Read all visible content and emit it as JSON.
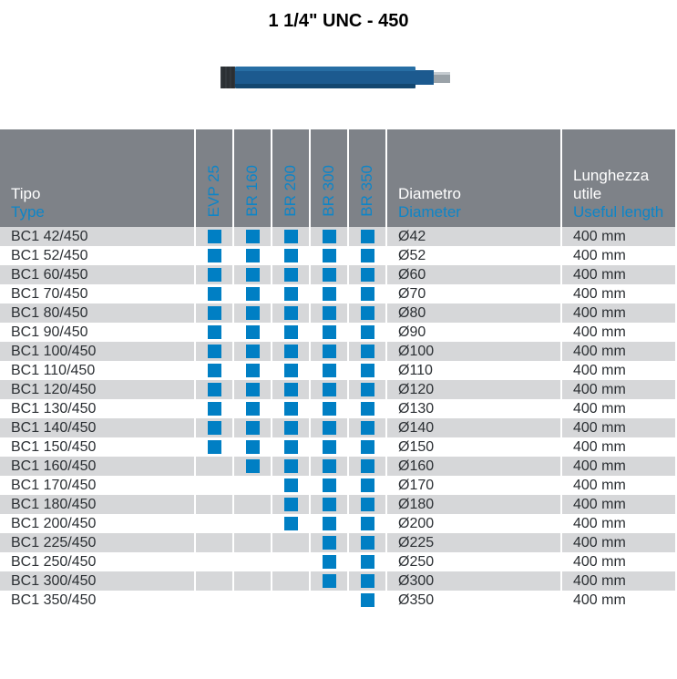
{
  "title": "1 1/4\" UNC - 450",
  "image": {
    "body_color": "#1c5a8f",
    "tip_color": "#33383d",
    "shank_color": "#9aa2a8"
  },
  "header": {
    "type_it": "Tipo",
    "type_en": "Type",
    "cols": [
      "EVP 25",
      "BR 160",
      "BR 200",
      "BR 300",
      "BR 350"
    ],
    "diam_it": "Diametro",
    "diam_en": "Diameter",
    "len_it": "Lunghezza utile",
    "len_en": "Useful length"
  },
  "marks": {
    "on_color": "#007fc4"
  },
  "rows": [
    {
      "type": "BC1 42/450",
      "m": [
        1,
        1,
        1,
        1,
        1
      ],
      "diam": "Ø42",
      "len": "400 mm"
    },
    {
      "type": "BC1 52/450",
      "m": [
        1,
        1,
        1,
        1,
        1
      ],
      "diam": "Ø52",
      "len": "400 mm"
    },
    {
      "type": "BC1 60/450",
      "m": [
        1,
        1,
        1,
        1,
        1
      ],
      "diam": "Ø60",
      "len": "400 mm"
    },
    {
      "type": "BC1 70/450",
      "m": [
        1,
        1,
        1,
        1,
        1
      ],
      "diam": "Ø70",
      "len": "400 mm"
    },
    {
      "type": "BC1 80/450",
      "m": [
        1,
        1,
        1,
        1,
        1
      ],
      "diam": "Ø80",
      "len": "400 mm"
    },
    {
      "type": "BC1 90/450",
      "m": [
        1,
        1,
        1,
        1,
        1
      ],
      "diam": "Ø90",
      "len": "400 mm"
    },
    {
      "type": "BC1 100/450",
      "m": [
        1,
        1,
        1,
        1,
        1
      ],
      "diam": "Ø100",
      "len": "400 mm"
    },
    {
      "type": "BC1 110/450",
      "m": [
        1,
        1,
        1,
        1,
        1
      ],
      "diam": "Ø110",
      "len": "400 mm"
    },
    {
      "type": "BC1 120/450",
      "m": [
        1,
        1,
        1,
        1,
        1
      ],
      "diam": "Ø120",
      "len": "400 mm"
    },
    {
      "type": "BC1 130/450",
      "m": [
        1,
        1,
        1,
        1,
        1
      ],
      "diam": "Ø130",
      "len": "400 mm"
    },
    {
      "type": "BC1 140/450",
      "m": [
        1,
        1,
        1,
        1,
        1
      ],
      "diam": "Ø140",
      "len": "400 mm"
    },
    {
      "type": "BC1 150/450",
      "m": [
        1,
        1,
        1,
        1,
        1
      ],
      "diam": "Ø150",
      "len": "400 mm"
    },
    {
      "type": "BC1 160/450",
      "m": [
        0,
        1,
        1,
        1,
        1
      ],
      "diam": "Ø160",
      "len": "400 mm"
    },
    {
      "type": "BC1 170/450",
      "m": [
        0,
        0,
        1,
        1,
        1
      ],
      "diam": "Ø170",
      "len": "400 mm"
    },
    {
      "type": "BC1 180/450",
      "m": [
        0,
        0,
        1,
        1,
        1
      ],
      "diam": "Ø180",
      "len": "400 mm"
    },
    {
      "type": "BC1 200/450",
      "m": [
        0,
        0,
        1,
        1,
        1
      ],
      "diam": "Ø200",
      "len": "400 mm"
    },
    {
      "type": "BC1 225/450",
      "m": [
        0,
        0,
        0,
        1,
        1
      ],
      "diam": "Ø225",
      "len": "400 mm"
    },
    {
      "type": "BC1 250/450",
      "m": [
        0,
        0,
        0,
        1,
        1
      ],
      "diam": "Ø250",
      "len": "400 mm"
    },
    {
      "type": "BC1 300/450",
      "m": [
        0,
        0,
        0,
        1,
        1
      ],
      "diam": "Ø300",
      "len": "400 mm"
    },
    {
      "type": "BC1 350/450",
      "m": [
        0,
        0,
        0,
        0,
        1
      ],
      "diam": "Ø350",
      "len": "400 mm"
    }
  ]
}
